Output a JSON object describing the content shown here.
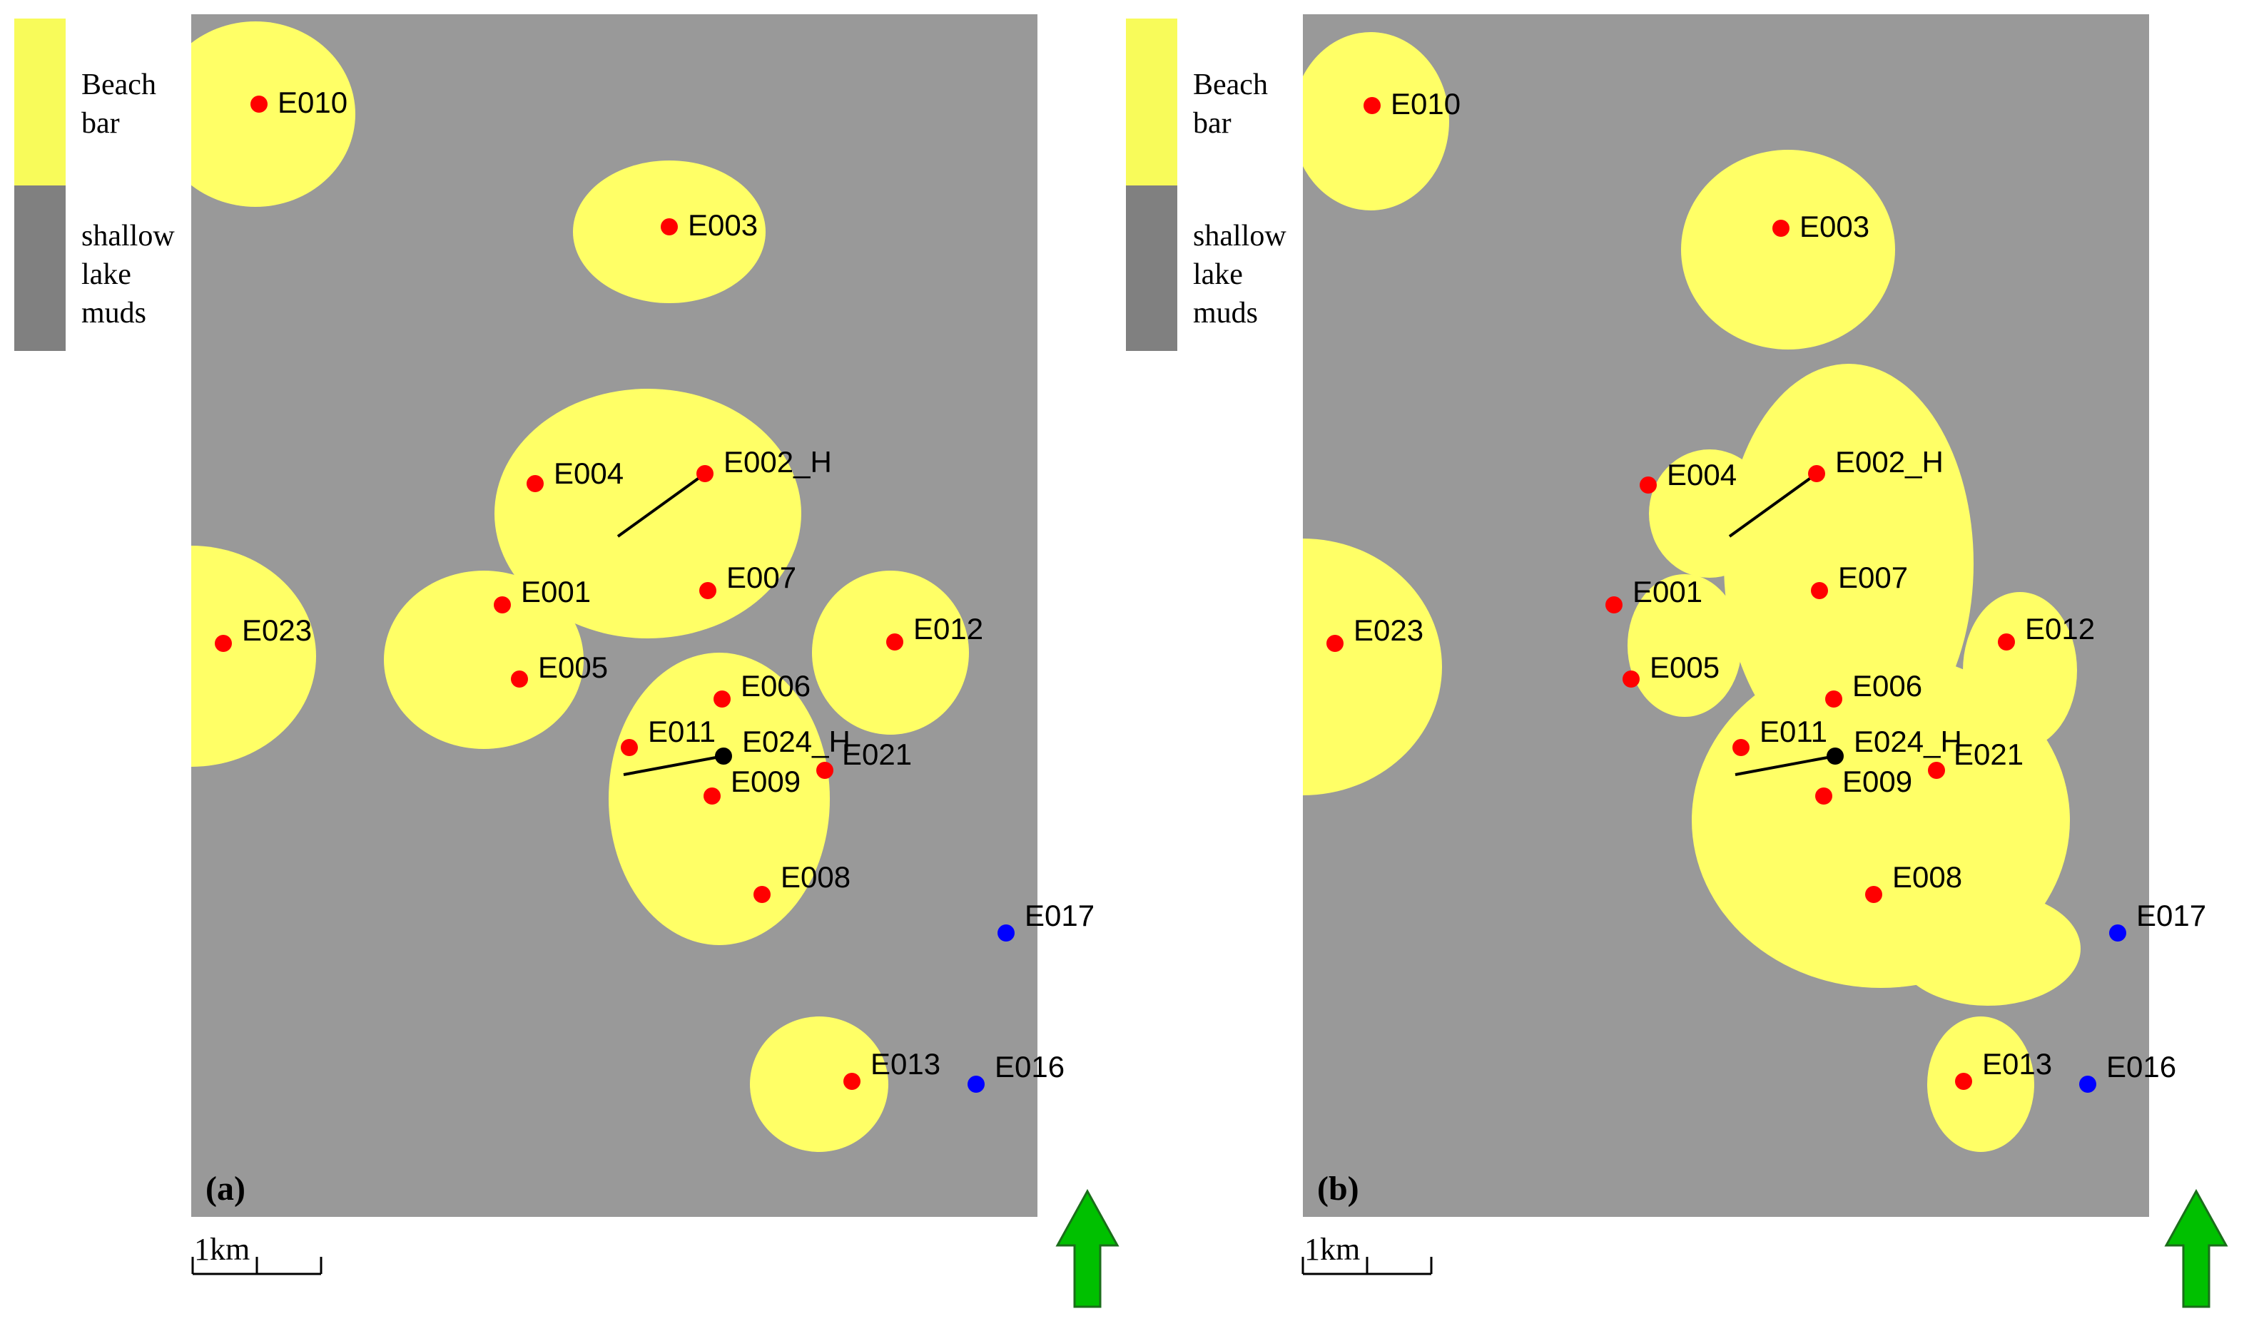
{
  "legend": {
    "items": [
      {
        "label_lines": [
          "Beach",
          "bar"
        ],
        "color": "#f8fb5a"
      },
      {
        "label_lines": [
          "shallow",
          "lake",
          "muds"
        ],
        "color": "#808080"
      }
    ]
  },
  "colors": {
    "background": "#999999",
    "beach_bar": "#ffff66",
    "producing_well": "#ff0000",
    "other_well": "#0000ff",
    "horizontal_well": "#000000",
    "north_arrow": "#00c000"
  },
  "scale_bar": {
    "label": "1km"
  },
  "north_arrow": {
    "icon": "north-arrow-icon"
  },
  "panels": [
    {
      "tag": "(a)",
      "wells": [
        {
          "name": "E010",
          "type": "red"
        },
        {
          "name": "E003",
          "type": "red"
        },
        {
          "name": "E004",
          "type": "red"
        },
        {
          "name": "E002_H",
          "type": "red"
        },
        {
          "name": "E001",
          "type": "red"
        },
        {
          "name": "E007",
          "type": "red"
        },
        {
          "name": "E023",
          "type": "red"
        },
        {
          "name": "E012",
          "type": "red"
        },
        {
          "name": "E005",
          "type": "red"
        },
        {
          "name": "E006",
          "type": "red"
        },
        {
          "name": "E011",
          "type": "red"
        },
        {
          "name": "E024_H",
          "type": "black"
        },
        {
          "name": "E021",
          "type": "red"
        },
        {
          "name": "E009",
          "type": "red"
        },
        {
          "name": "E008",
          "type": "red"
        },
        {
          "name": "E017",
          "type": "blue"
        },
        {
          "name": "E013",
          "type": "red"
        },
        {
          "name": "E016",
          "type": "blue"
        }
      ]
    },
    {
      "tag": "(b)",
      "wells": [
        {
          "name": "E010",
          "type": "red"
        },
        {
          "name": "E003",
          "type": "red"
        },
        {
          "name": "E004",
          "type": "red"
        },
        {
          "name": "E002_H",
          "type": "red"
        },
        {
          "name": "E001",
          "type": "red"
        },
        {
          "name": "E007",
          "type": "red"
        },
        {
          "name": "E023",
          "type": "red"
        },
        {
          "name": "E012",
          "type": "red"
        },
        {
          "name": "E005",
          "type": "red"
        },
        {
          "name": "E006",
          "type": "red"
        },
        {
          "name": "E011",
          "type": "red"
        },
        {
          "name": "E024_H",
          "type": "black"
        },
        {
          "name": "E021",
          "type": "red"
        },
        {
          "name": "E009",
          "type": "red"
        },
        {
          "name": "E008",
          "type": "red"
        },
        {
          "name": "E017",
          "type": "blue"
        },
        {
          "name": "E013",
          "type": "red"
        },
        {
          "name": "E016",
          "type": "blue"
        }
      ]
    }
  ]
}
